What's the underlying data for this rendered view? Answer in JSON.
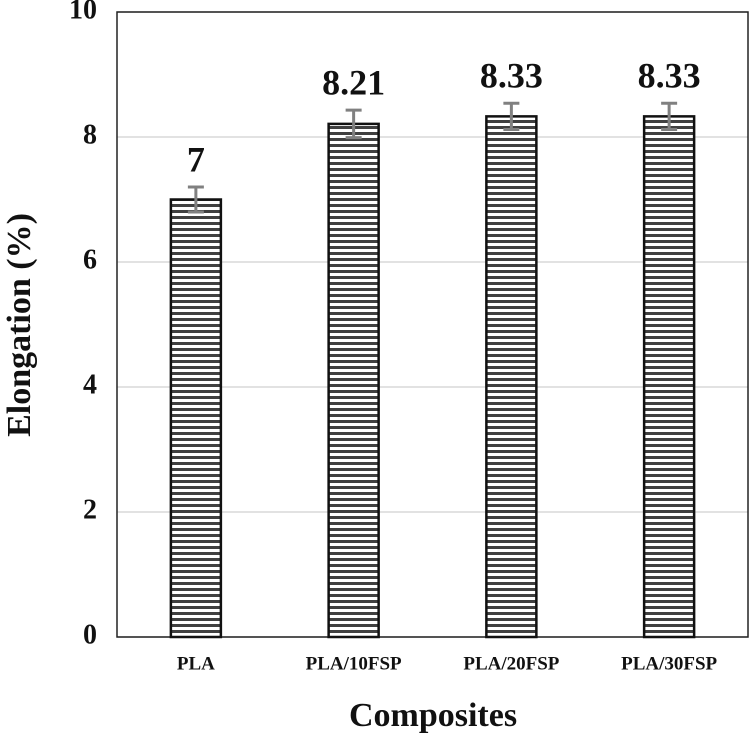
{
  "chart_data": {
    "type": "bar",
    "x_label": "Composites",
    "y_label": "Elongation (%)",
    "categories": [
      "PLA",
      "PLA/10FSP",
      "PLA/20FSP",
      "PLA/30FSP"
    ],
    "values": [
      7,
      8.21,
      8.33,
      8.33
    ],
    "errors": [
      0.2,
      0.22,
      0.21,
      0.21
    ],
    "color": "#404040",
    "error_color": "#808080",
    "ylim": [
      0,
      10
    ],
    "yticks": [
      0,
      2,
      4,
      6,
      8,
      10
    ],
    "grid": true
  }
}
